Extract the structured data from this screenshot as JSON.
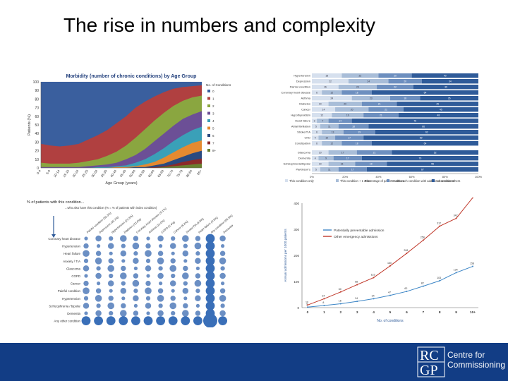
{
  "slide": {
    "title": "The rise in numbers and complexity"
  },
  "chart_data": [
    {
      "type": "area",
      "title": "Morbidity (number of chronic conditions) by Age Group",
      "xlabel": "Age Group (years)",
      "ylabel": "Patients (%)",
      "ylim": [
        0,
        100
      ],
      "yticks": [
        0,
        10,
        20,
        30,
        40,
        50,
        60,
        70,
        80,
        90,
        100
      ],
      "categories": [
        "0-4",
        "5-9",
        "10-14",
        "15-19",
        "20-24",
        "25-29",
        "30-34",
        "35-39",
        "40-44",
        "45-49",
        "50-54",
        "55-59",
        "60-64",
        "65-69",
        "70-74",
        "75-79",
        "80-84",
        "85+"
      ],
      "legend_title": "No. of Conditions",
      "colors": [
        "#3a5f9e",
        "#b04040",
        "#8aa640",
        "#6c4f96",
        "#3aa0b8",
        "#e58a30",
        "#2a4a80",
        "#8c2a2a",
        "#6a8030"
      ],
      "series": [
        {
          "name": "0",
          "values": [
            100,
            100,
            100,
            100,
            100,
            100,
            100,
            100,
            100,
            100,
            100,
            100,
            100,
            100,
            100,
            100,
            100,
            100
          ]
        },
        {
          "name": "1",
          "values": [
            28,
            26,
            25,
            26,
            28,
            33,
            38,
            44,
            52,
            60,
            70,
            77,
            83,
            88,
            92,
            94,
            95,
            96
          ]
        },
        {
          "name": "2",
          "values": [
            6,
            5,
            5,
            5,
            6,
            8,
            10,
            14,
            19,
            26,
            35,
            45,
            55,
            64,
            72,
            78,
            82,
            84
          ]
        },
        {
          "name": "3",
          "values": [
            1,
            1,
            1,
            1,
            1,
            2,
            3,
            4,
            6,
            10,
            15,
            22,
            31,
            40,
            49,
            57,
            62,
            66
          ]
        },
        {
          "name": "4",
          "values": [
            0,
            0,
            0,
            0,
            0,
            0,
            1,
            1,
            2,
            3,
            6,
            10,
            16,
            23,
            31,
            38,
            44,
            48
          ]
        },
        {
          "name": "5",
          "values": [
            0,
            0,
            0,
            0,
            0,
            0,
            0,
            0,
            1,
            1,
            2,
            4,
            7,
            12,
            18,
            24,
            29,
            32
          ]
        },
        {
          "name": "6",
          "values": [
            0,
            0,
            0,
            0,
            0,
            0,
            0,
            0,
            0,
            0,
            1,
            1,
            3,
            5,
            9,
            13,
            17,
            20
          ]
        },
        {
          "name": "7",
          "values": [
            0,
            0,
            0,
            0,
            0,
            0,
            0,
            0,
            0,
            0,
            0,
            0,
            1,
            2,
            4,
            7,
            9,
            11
          ]
        },
        {
          "name": "8+",
          "values": [
            0,
            0,
            0,
            0,
            0,
            0,
            0,
            0,
            0,
            0,
            0,
            0,
            0,
            1,
            2,
            3,
            4,
            5
          ]
        }
      ]
    },
    {
      "type": "bar",
      "orientation": "horizontal-stacked",
      "xlabel": "Percentage of patients with each condition with additional conditions",
      "xticks": [
        "0%",
        "20%",
        "40%",
        "60%",
        "80%",
        "100%"
      ],
      "categories": [
        "Hypertension",
        "Depression",
        "Painful condition",
        "Coronary heart disease",
        "Asthma",
        "Diabetes",
        "Cancer",
        "Hypothyroidism",
        "Heart failure",
        "Atrial fibrillation",
        "Stroke/TIA",
        "CKD",
        "Constipation",
        "Glaucoma",
        "Dementia",
        "Schizophrenia/bipolar",
        "Parkinson's"
      ],
      "colors": [
        "#d6e0ee",
        "#a8bdd8",
        "#6d8fbf",
        "#2f5b99"
      ],
      "legend": [
        "This condition only",
        "This condition + 1 other",
        "+ 2 others",
        "+ 3 or more others"
      ],
      "series": [
        {
          "name": "This condition only",
          "values": [
            18,
            22,
            16,
            6,
            24,
            10,
            14,
            12,
            3,
            5,
            6,
            4,
            6,
            10,
            4,
            10,
            5
          ]
        },
        {
          "name": "This condition + 1 other",
          "values": [
            22,
            24,
            23,
            12,
            23,
            20,
            20,
            19,
            7,
            11,
            13,
            10,
            12,
            17,
            9,
            16,
            11
          ]
        },
        {
          "name": "+ 2 others",
          "values": [
            20,
            20,
            22,
            18,
            18,
            21,
            21,
            21,
            14,
            18,
            19,
            17,
            18,
            21,
            17,
            19,
            17
          ]
        },
        {
          "name": "+ 3 or more others",
          "values": [
            40,
            34,
            39,
            64,
            35,
            49,
            45,
            48,
            76,
            66,
            62,
            69,
            64,
            52,
            70,
            55,
            67
          ]
        }
      ]
    },
    {
      "type": "table",
      "subtitle": "% of patients with this condition...",
      "caption": "...who also have this condition (% = % of patients with index condition)",
      "rows": [
        "Coronary heart disease",
        "Hypertension",
        "Heart failure",
        "Anxiety / TIA",
        "Glaucoma",
        "COPD",
        "Cancer",
        "Painful condition",
        "Hypertension",
        "Schizophrenia / bipolar",
        "Dementia",
        "Any other condition"
      ],
      "columns": [
        "Painful condition (32.3%)",
        "Depression (26.1%)",
        "Hypertension (21.8%)",
        "Diabetes (13.8%)",
        "Coronary heart disease (9.1%)",
        "Asthma (11.0%)",
        "COPD (5.4%)",
        "Cancer (5.2%)",
        "Stroke/TIA (3.9%)",
        "Heart failure (2.6%)",
        "Any condition (56.9%)",
        "Dementia (1.5%)"
      ]
    },
    {
      "type": "line",
      "xlabel": "No. of conditions",
      "ylabel": "Annual admissions per 1000 patients",
      "categories": [
        "0",
        "1",
        "2",
        "3",
        "4",
        "5",
        "6",
        "7",
        "8",
        "9",
        "10+"
      ],
      "yticks": [
        0,
        100,
        200,
        300,
        400
      ],
      "ylim": [
        0,
        400
      ],
      "series": [
        {
          "name": "Potentially preventable admission",
          "color": "#3d86c6",
          "values": [
            2,
            8,
            15,
            24,
            34,
            47,
            62,
            82,
            103,
            134,
            158
          ]
        },
        {
          "name": "Other emergency admissions",
          "color": "#c0392b",
          "values": [
            10,
            34,
            60,
            88,
            115,
            160,
            208,
            258,
            312,
            342,
            421
          ]
        }
      ]
    }
  ],
  "branding": {
    "logo_top": "RC",
    "logo_bottom": "GP",
    "org_line1": "Centre for",
    "org_line2": "Commissioning"
  }
}
